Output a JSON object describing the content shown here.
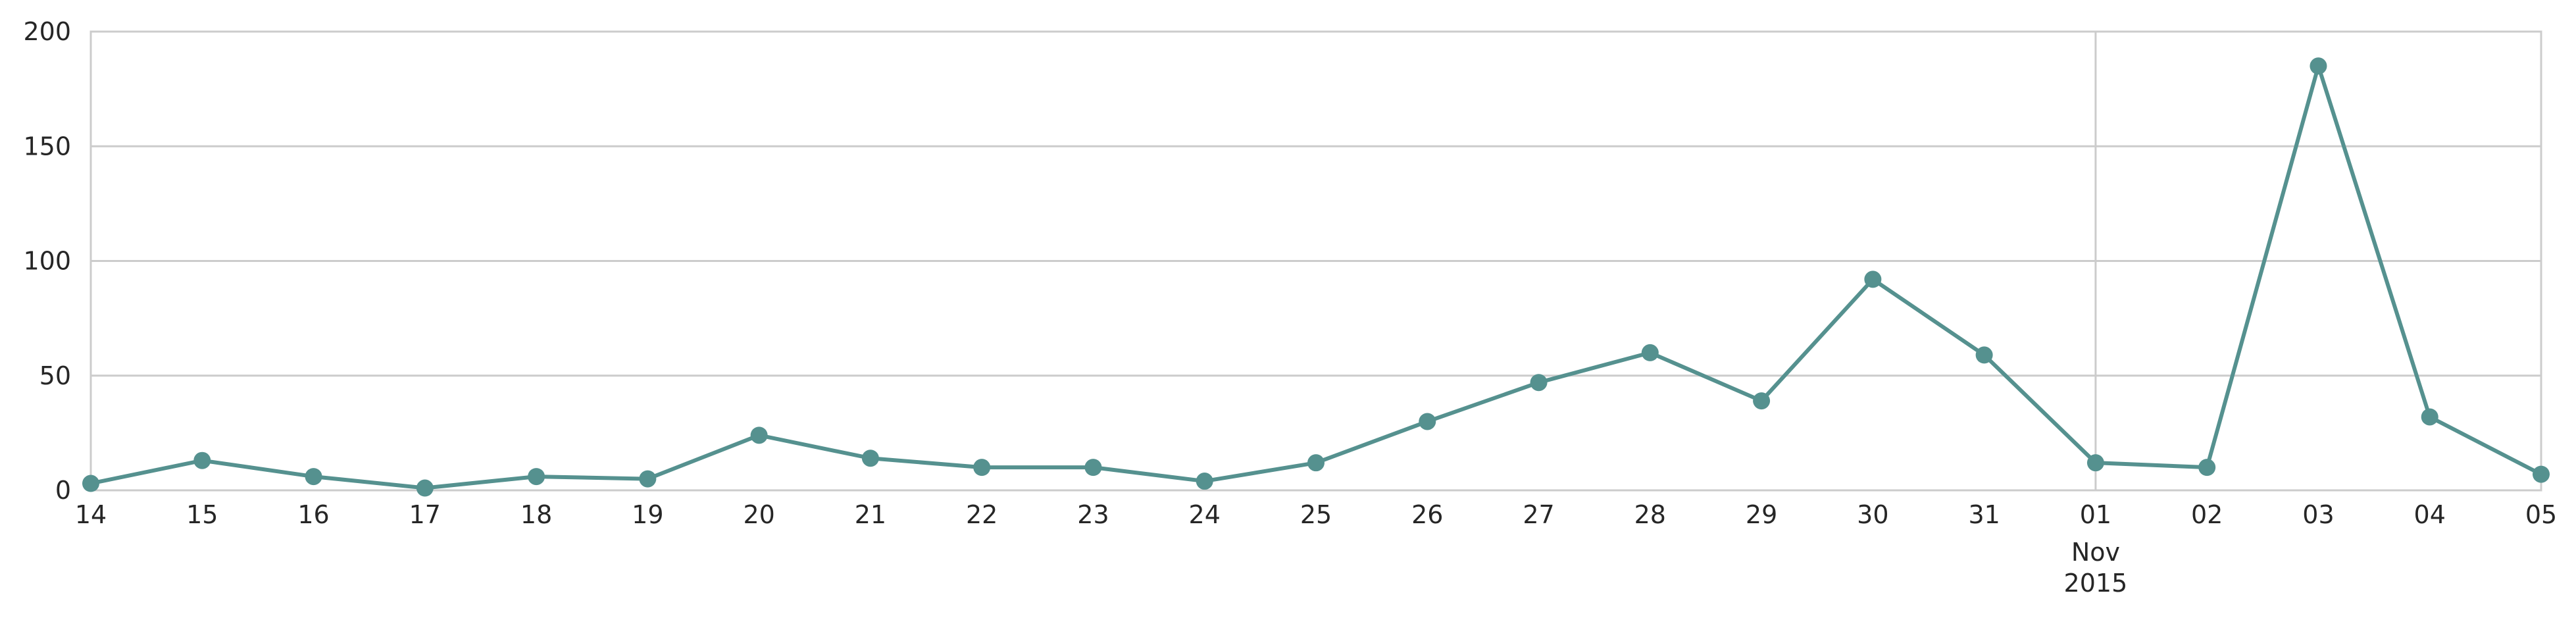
{
  "chart_data": {
    "type": "line",
    "title": "",
    "xlabel": "",
    "ylabel": "",
    "ylim": [
      0,
      200
    ],
    "yticks": [
      0,
      50,
      100,
      150,
      200
    ],
    "grid": true,
    "legend": "none",
    "x_tick_labels": [
      "14",
      "15",
      "16",
      "17",
      "18",
      "19",
      "20",
      "21",
      "22",
      "23",
      "24",
      "25",
      "26",
      "27",
      "28",
      "29",
      "30",
      "31",
      "01",
      "02",
      "03",
      "04",
      "05"
    ],
    "x_tick_sublabels": {
      "18": [
        "Nov",
        "2015"
      ]
    },
    "x_dates": [
      "2015-10-14",
      "2015-10-15",
      "2015-10-16",
      "2015-10-17",
      "2015-10-18",
      "2015-10-19",
      "2015-10-20",
      "2015-10-21",
      "2015-10-22",
      "2015-10-23",
      "2015-10-24",
      "2015-10-25",
      "2015-10-26",
      "2015-10-27",
      "2015-10-28",
      "2015-10-29",
      "2015-10-30",
      "2015-10-31",
      "2015-11-01",
      "2015-11-02",
      "2015-11-03",
      "2015-11-04",
      "2015-11-05"
    ],
    "series": [
      {
        "values": [
          3,
          13,
          6,
          1,
          6,
          5,
          24,
          14,
          10,
          10,
          4,
          12,
          30,
          47,
          60,
          39,
          92,
          59,
          12,
          10,
          185,
          32,
          7
        ],
        "color": "#55918f"
      }
    ]
  }
}
